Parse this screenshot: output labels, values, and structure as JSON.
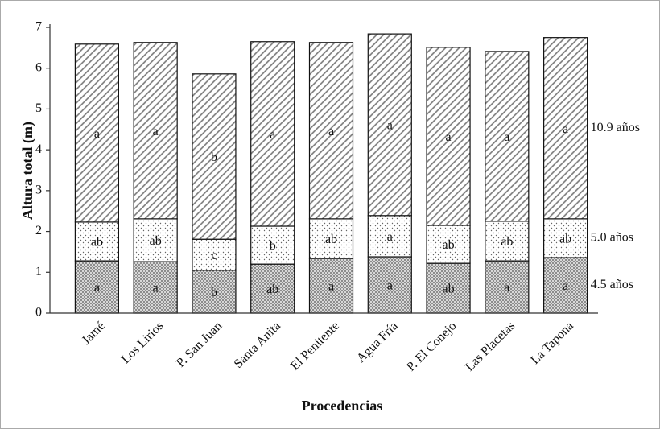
{
  "chart_data": {
    "type": "stacked-bar",
    "x_label": "Procedencias",
    "y_label": "Altura total (m)",
    "categories": [
      "Jamé",
      "Los Lirios",
      "P. San Juan",
      "Santa Anita",
      "El Penitente",
      "Agua Fría",
      "P. El Conejo",
      "Las Placetas",
      "La Tapona"
    ],
    "series": [
      {
        "name": "4.5 años",
        "color": "#888888",
        "values": [
          1.28,
          1.26,
          1.05,
          1.2,
          1.34,
          1.38,
          1.22,
          1.28,
          1.36
        ],
        "labels": [
          "a",
          "a",
          "b",
          "ab",
          "a",
          "a",
          "ab",
          "a",
          "a"
        ]
      },
      {
        "name": "5.0 años",
        "color": "#666666",
        "values": [
          0.95,
          1.05,
          0.76,
          0.93,
          0.97,
          1.01,
          0.93,
          0.97,
          0.95
        ],
        "labels": [
          "ab",
          "ab",
          "c",
          "b",
          "ab",
          "a",
          "ab",
          "ab",
          "ab"
        ]
      },
      {
        "name": "10.9 años",
        "color": "#777777",
        "values": [
          4.36,
          4.32,
          4.05,
          4.52,
          4.32,
          4.45,
          4.36,
          4.16,
          4.44
        ],
        "labels": [
          "a",
          "a",
          "b",
          "a",
          "a",
          "a",
          "a",
          "a",
          "a"
        ]
      }
    ],
    "ylim": [
      0,
      7
    ],
    "yticks": [
      0,
      1,
      2,
      3,
      4,
      5,
      6,
      7
    ]
  }
}
